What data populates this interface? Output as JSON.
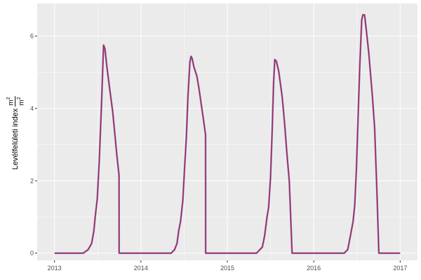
{
  "chart_data": {
    "type": "line",
    "title": "",
    "xlabel": "",
    "ylabel": "Levélfelületi index",
    "ylabel_unit_numerator": "m",
    "ylabel_unit_denominator": "m",
    "ylabel_unit_exponent": "2",
    "xlim": [
      2012.8,
      2017.2
    ],
    "ylim": [
      -0.2,
      6.9
    ],
    "x_ticks": [
      2013,
      2014,
      2015,
      2016,
      2017
    ],
    "x_tick_labels": [
      "2013",
      "2014",
      "2015",
      "2016",
      "2017"
    ],
    "y_ticks": [
      0,
      2,
      4,
      6
    ],
    "y_tick_labels": [
      "0",
      "2",
      "4",
      "6"
    ],
    "grid": true,
    "background": "#ebebeb",
    "legend": "none",
    "series": [
      {
        "color": "#6656b8",
        "points": [
          [
            2013.0,
            0
          ],
          [
            2013.333,
            0
          ],
          [
            2013.39,
            0.1
          ],
          [
            2013.43,
            0.27
          ],
          [
            2013.455,
            0.6
          ],
          [
            2013.471,
            1.0
          ],
          [
            2013.495,
            1.5
          ],
          [
            2013.519,
            2.6
          ],
          [
            2013.544,
            4.1
          ],
          [
            2013.568,
            5.75
          ],
          [
            2013.584,
            5.65
          ],
          [
            2013.609,
            5.1
          ],
          [
            2013.641,
            4.5
          ],
          [
            2013.674,
            3.9
          ],
          [
            2013.698,
            3.3
          ],
          [
            2013.722,
            2.7
          ],
          [
            2013.747,
            2.15
          ],
          [
            2013.748,
            0
          ],
          [
            2014.35,
            0
          ],
          [
            2014.39,
            0.1
          ],
          [
            2014.418,
            0.27
          ],
          [
            2014.437,
            0.62
          ],
          [
            2014.459,
            0.88
          ],
          [
            2014.485,
            1.46
          ],
          [
            2014.507,
            2.43
          ],
          [
            2014.526,
            3.21
          ],
          [
            2014.545,
            4.37
          ],
          [
            2014.567,
            5.28
          ],
          [
            2014.58,
            5.44
          ],
          [
            2014.593,
            5.38
          ],
          [
            2014.613,
            5.15
          ],
          [
            2014.648,
            4.89
          ],
          [
            2014.675,
            4.5
          ],
          [
            2014.702,
            4.05
          ],
          [
            2014.729,
            3.6
          ],
          [
            2014.748,
            3.27
          ],
          [
            2014.749,
            0
          ],
          [
            2015.338,
            0
          ],
          [
            2015.405,
            0.17
          ],
          [
            2015.432,
            0.49
          ],
          [
            2015.459,
            1.0
          ],
          [
            2015.478,
            1.27
          ],
          [
            2015.5,
            2.11
          ],
          [
            2015.519,
            3.4
          ],
          [
            2015.535,
            4.7
          ],
          [
            2015.549,
            5.35
          ],
          [
            2015.567,
            5.31
          ],
          [
            2015.595,
            5.02
          ],
          [
            2015.635,
            4.31
          ],
          [
            2015.662,
            3.6
          ],
          [
            2015.689,
            2.76
          ],
          [
            2015.717,
            1.98
          ],
          [
            2015.749,
            0
          ],
          [
            2016.352,
            0
          ],
          [
            2016.393,
            0.1
          ],
          [
            2016.42,
            0.43
          ],
          [
            2016.455,
            0.88
          ],
          [
            2016.474,
            1.33
          ],
          [
            2016.493,
            2.3
          ],
          [
            2016.515,
            3.92
          ],
          [
            2016.533,
            5.22
          ],
          [
            2016.555,
            6.45
          ],
          [
            2016.569,
            6.59
          ],
          [
            2016.588,
            6.58
          ],
          [
            2016.61,
            6.12
          ],
          [
            2016.636,
            5.54
          ],
          [
            2016.677,
            4.37
          ],
          [
            2016.704,
            3.47
          ],
          [
            2016.731,
            1.66
          ],
          [
            2016.753,
            0
          ],
          [
            2017.0,
            0
          ]
        ]
      },
      {
        "color": "#c0142c",
        "points": [
          [
            2013.0,
            0
          ],
          [
            2013.333,
            0
          ],
          [
            2013.39,
            0.1
          ],
          [
            2013.43,
            0.27
          ],
          [
            2013.455,
            0.6
          ],
          [
            2013.471,
            1.0
          ],
          [
            2013.495,
            1.5
          ],
          [
            2013.519,
            2.6
          ],
          [
            2013.544,
            4.1
          ],
          [
            2013.568,
            5.75
          ],
          [
            2013.584,
            5.65
          ],
          [
            2013.609,
            5.1
          ],
          [
            2013.641,
            4.5
          ],
          [
            2013.674,
            3.9
          ],
          [
            2013.698,
            3.3
          ],
          [
            2013.722,
            2.7
          ],
          [
            2013.747,
            2.15
          ],
          [
            2013.748,
            0
          ],
          [
            2014.35,
            0
          ],
          [
            2014.39,
            0.1
          ],
          [
            2014.418,
            0.27
          ],
          [
            2014.437,
            0.62
          ],
          [
            2014.459,
            0.88
          ],
          [
            2014.485,
            1.46
          ],
          [
            2014.507,
            2.43
          ],
          [
            2014.526,
            3.21
          ],
          [
            2014.545,
            4.37
          ],
          [
            2014.567,
            5.28
          ],
          [
            2014.58,
            5.44
          ],
          [
            2014.593,
            5.38
          ],
          [
            2014.613,
            5.15
          ],
          [
            2014.648,
            4.89
          ],
          [
            2014.675,
            4.5
          ],
          [
            2014.702,
            4.05
          ],
          [
            2014.729,
            3.6
          ],
          [
            2014.748,
            3.27
          ],
          [
            2014.749,
            0
          ],
          [
            2015.338,
            0
          ],
          [
            2015.405,
            0.17
          ],
          [
            2015.432,
            0.49
          ],
          [
            2015.459,
            1.0
          ],
          [
            2015.478,
            1.27
          ],
          [
            2015.5,
            2.11
          ],
          [
            2015.519,
            3.4
          ],
          [
            2015.535,
            4.7
          ],
          [
            2015.549,
            5.35
          ],
          [
            2015.567,
            5.31
          ],
          [
            2015.595,
            5.02
          ],
          [
            2015.635,
            4.31
          ],
          [
            2015.662,
            3.6
          ],
          [
            2015.689,
            2.76
          ],
          [
            2015.717,
            1.98
          ],
          [
            2015.749,
            0
          ],
          [
            2016.352,
            0
          ],
          [
            2016.393,
            0.1
          ],
          [
            2016.42,
            0.43
          ],
          [
            2016.455,
            0.88
          ],
          [
            2016.474,
            1.33
          ],
          [
            2016.493,
            2.3
          ],
          [
            2016.515,
            3.92
          ],
          [
            2016.533,
            5.22
          ],
          [
            2016.555,
            6.45
          ],
          [
            2016.569,
            6.59
          ],
          [
            2016.588,
            6.58
          ],
          [
            2016.61,
            6.12
          ],
          [
            2016.636,
            5.54
          ],
          [
            2016.677,
            4.37
          ],
          [
            2016.704,
            3.47
          ],
          [
            2016.731,
            1.66
          ],
          [
            2016.753,
            0
          ],
          [
            2017.0,
            0
          ]
        ]
      }
    ]
  }
}
